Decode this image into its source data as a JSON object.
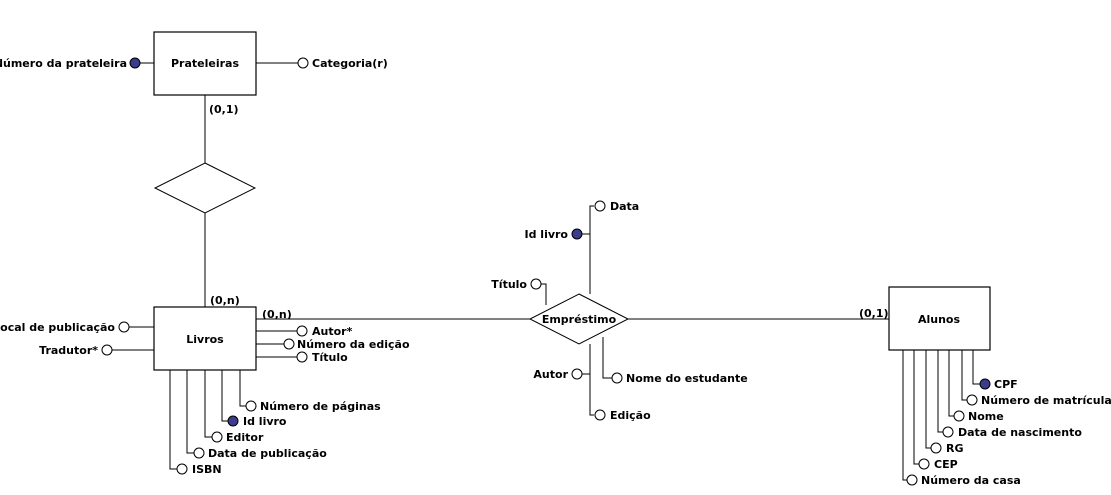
{
  "colors": {
    "key_attribute": "#3c3c8c",
    "attribute": "#ffffff",
    "line": "#000000"
  },
  "entities": {
    "prateleiras": "Prateleiras",
    "livros": "Livros",
    "alunos": "Alunos"
  },
  "relationships": {
    "emprestimo": "Empréstimo"
  },
  "cardinalities": {
    "prateleiras_top": "(0,1)",
    "livros_top": "(0,n)",
    "livros_right": "(0,n)",
    "alunos_left": "(0,1)"
  },
  "attributes": {
    "prateleiras": {
      "numero_prateleira": "Número da prateleira",
      "categoria": "Categoria(r)"
    },
    "livros": {
      "local_publicacao": "Local de publicação",
      "tradutor": "Tradutor*",
      "autor": "Autor*",
      "numero_edicao": "Número da edição",
      "titulo": "Título",
      "numero_paginas": "Número de páginas",
      "id_livro": "Id livro",
      "editor": "Editor",
      "data_publicacao": "Data de publicação",
      "isbn": "ISBN"
    },
    "emprestimo": {
      "data": "Data",
      "id_livro": "Id livro",
      "titulo": "Título",
      "autor": "Autor",
      "nome_estudante": "Nome do estudante",
      "edicao": "Edição"
    },
    "alunos": {
      "cpf": "CPF",
      "numero_matricula": "Número de matrícula",
      "nome": "Nome",
      "data_nascimento": "Data de nascimento",
      "rg": "RG",
      "cep": "CEP",
      "numero_casa": "Número da casa"
    }
  }
}
